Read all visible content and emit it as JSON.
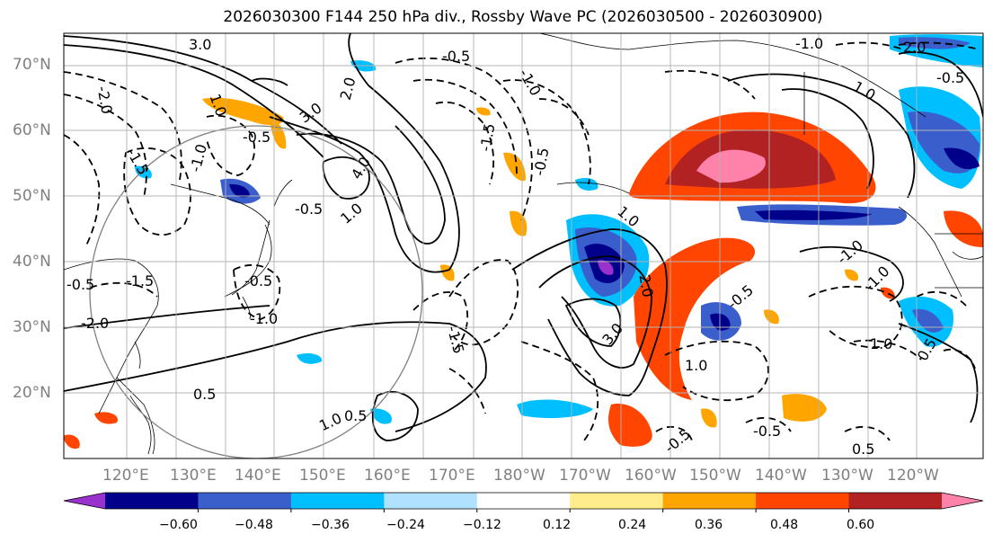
{
  "title": "2026030300 F144 250 hPa div., Rossby Wave PC (2026030500 - 2026030900)",
  "lat_labels": [
    "70°N",
    "60°N",
    "50°N",
    "40°N",
    "30°N",
    "20°N"
  ],
  "lon_labels": [
    "120°E",
    "130°E",
    "140°E",
    "150°E",
    "160°E",
    "170°E",
    "180°W",
    "170°W",
    "160°W",
    "150°W",
    "140°W",
    "130°W",
    "120°W"
  ],
  "colorbar": {
    "ticks": [
      "−0.60",
      "−0.48",
      "−0.36",
      "−0.24",
      "−0.12",
      "0.12",
      "0.24",
      "0.36",
      "0.48",
      "0.60"
    ],
    "colors": [
      "#9932cc",
      "#00008b",
      "#3a5fcd",
      "#00bfff",
      "#b0e2ff",
      "#ffffff",
      "#ffec8b",
      "#ffa500",
      "#ff4500",
      "#b22222",
      "#ff82ab"
    ]
  },
  "contour_labels": [
    "3.0",
    "-0.5",
    "-1.0",
    "2.0",
    "1.0",
    "2.0",
    "3.0",
    "-2.0",
    "-0.5",
    "1.0",
    "-0.5",
    "-1.0",
    "4.0",
    "-1.5",
    "-1.0",
    "-0.5",
    "1.0",
    "-1.5",
    "-0.5",
    "1.0",
    "2.0",
    "3.0",
    "-1.0",
    "-1.5",
    "0.5",
    "1.0",
    "-0.5",
    "-0.5",
    "-1.0",
    "-0.5",
    "-1.5",
    "0.5",
    "-0.5",
    "-0.5",
    "-2.0",
    "1.0",
    "0.5",
    "1.0",
    "-1.0",
    "0.5"
  ]
}
